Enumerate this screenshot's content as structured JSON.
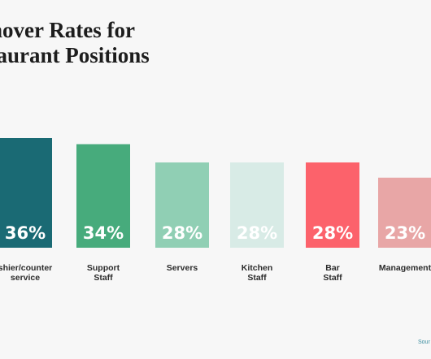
{
  "chart_data": {
    "type": "bar",
    "title_lines": [
      "rnover Rates for",
      "staurant Positions"
    ],
    "categories": [
      [
        "shier/counter",
        "service"
      ],
      [
        "Support",
        "Staff"
      ],
      [
        "Servers"
      ],
      [
        "Kitchen",
        "Staff"
      ],
      [
        "Bar",
        "Staff"
      ],
      [
        "Management"
      ]
    ],
    "values": [
      36,
      34,
      28,
      28,
      28,
      23
    ],
    "value_labels": [
      "36%",
      "34%",
      "28%",
      "28%",
      "28%",
      "23%"
    ],
    "colors": [
      "#1a6a74",
      "#47ab7c",
      "#90cfb4",
      "#d8ebe6",
      "#fc626b",
      "#e8a6a6"
    ],
    "xlabel": "",
    "ylabel": "",
    "grid": false,
    "legend": "none"
  },
  "footer": {
    "source": "Sour"
  }
}
